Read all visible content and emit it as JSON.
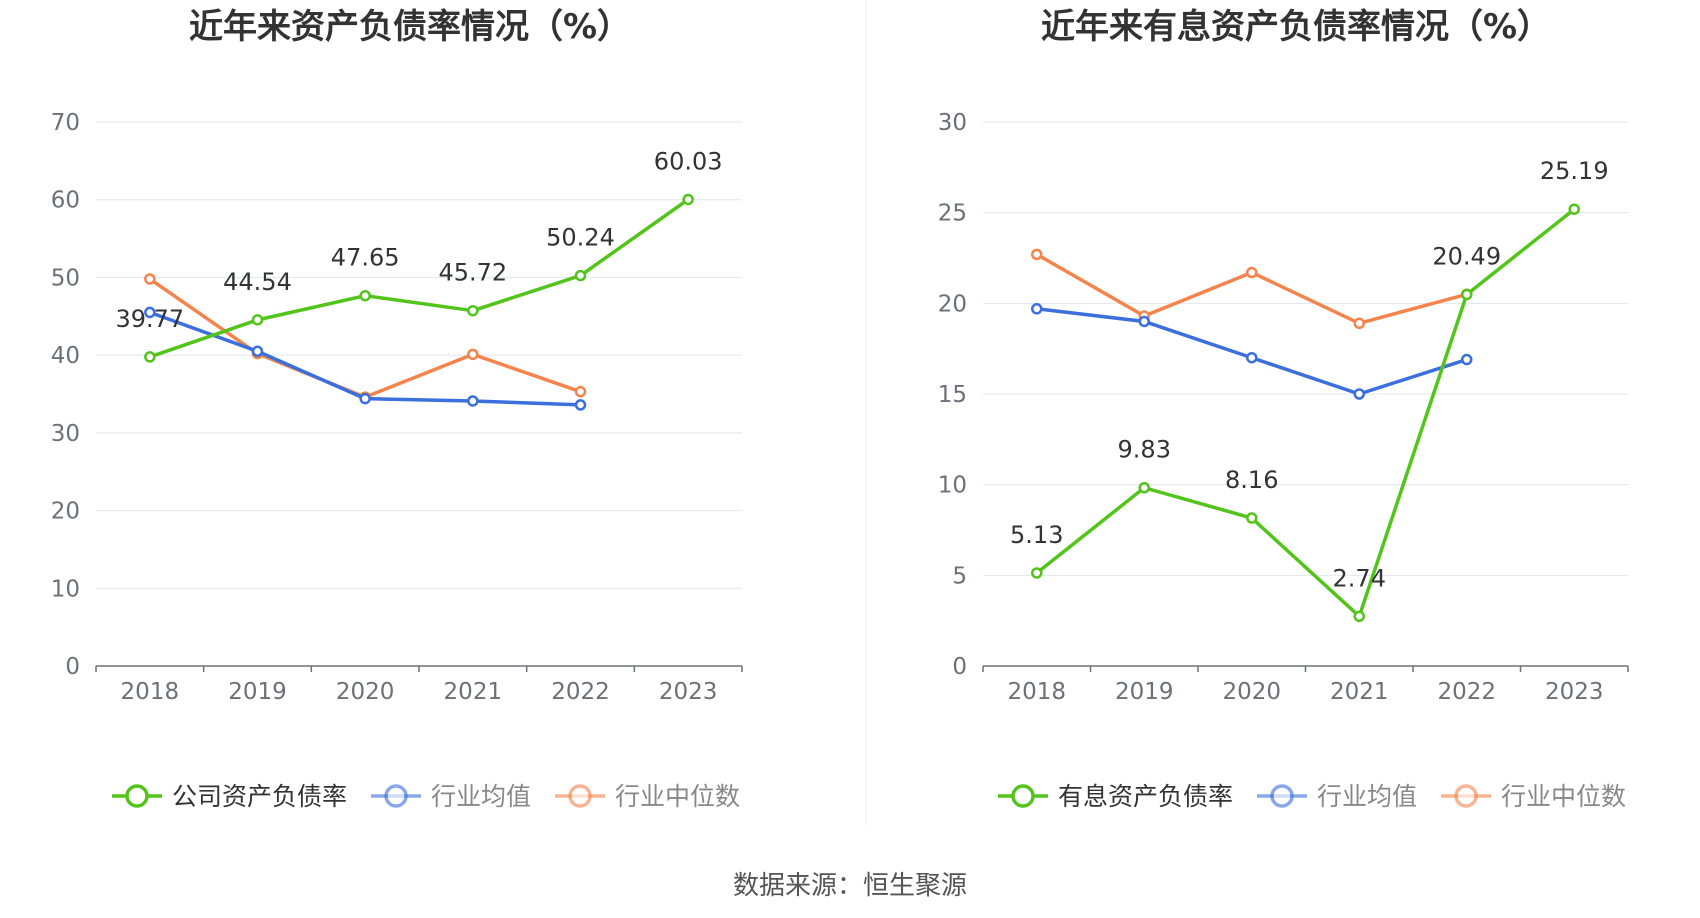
{
  "chart_data": [
    {
      "type": "line",
      "title": "近年来资产负债率情况（%）",
      "categories": [
        "2018",
        "2019",
        "2020",
        "2021",
        "2022",
        "2023"
      ],
      "ylim": [
        0,
        70
      ],
      "yticks": [
        "0",
        "10",
        "20",
        "30",
        "40",
        "50",
        "60",
        "70"
      ],
      "grid": true,
      "legend_position": "bottom",
      "series": [
        {
          "name": "公司资产负债率",
          "color": "#52c41a",
          "values": [
            39.77,
            44.54,
            47.65,
            45.72,
            50.24,
            60.03
          ],
          "labels": [
            "39.77",
            "44.54",
            "47.65",
            "45.72",
            "50.24",
            "60.03"
          ]
        },
        {
          "name": "行业均值",
          "color": "#3a6fdd",
          "values": [
            45.5,
            40.5,
            34.4,
            34.1,
            33.6,
            null
          ]
        },
        {
          "name": "行业中位数",
          "color": "#f5844c",
          "values": [
            49.8,
            40.2,
            34.6,
            40.1,
            35.3,
            null
          ]
        }
      ]
    },
    {
      "type": "line",
      "title": "近年来有息资产负债率情况（%）",
      "categories": [
        "2018",
        "2019",
        "2020",
        "2021",
        "2022",
        "2023"
      ],
      "ylim": [
        0,
        30
      ],
      "yticks": [
        "0",
        "5",
        "10",
        "15",
        "20",
        "25",
        "30"
      ],
      "grid": true,
      "legend_position": "bottom",
      "series": [
        {
          "name": "有息资产负债率",
          "color": "#52c41a",
          "values": [
            5.13,
            9.83,
            8.16,
            2.74,
            20.49,
            25.19
          ],
          "labels": [
            "5.13",
            "9.83",
            "8.16",
            "2.74",
            "20.49",
            "25.19"
          ]
        },
        {
          "name": "行业均值",
          "color": "#3a6fdd",
          "values": [
            19.7,
            19.0,
            17.0,
            15.0,
            16.9,
            null
          ]
        },
        {
          "name": "行业中位数",
          "color": "#f5844c",
          "values": [
            22.7,
            19.3,
            21.7,
            18.9,
            20.5,
            null
          ]
        }
      ]
    }
  ],
  "source_text": "数据来源：恒生聚源"
}
